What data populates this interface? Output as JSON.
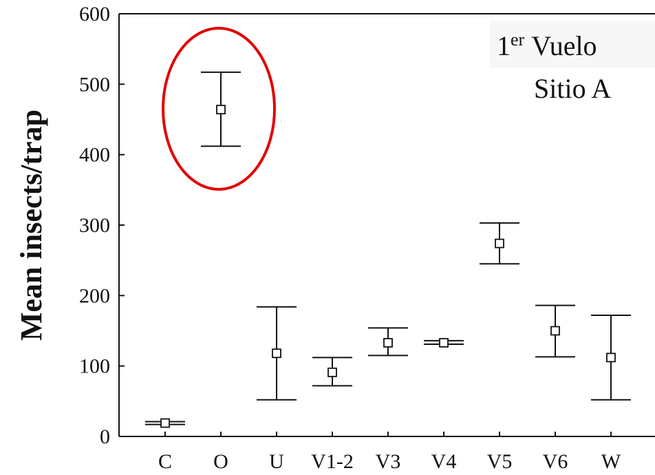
{
  "chart_data": {
    "type": "scatter",
    "title": "",
    "xlabel": "",
    "ylabel": "Mean insects/trap",
    "ylim": [
      0,
      600
    ],
    "yticks": [
      0,
      100,
      200,
      300,
      400,
      500,
      600
    ],
    "grid": false,
    "categories": [
      "C",
      "O",
      "U",
      "V1-2",
      "V3",
      "V4",
      "V5",
      "V6",
      "W"
    ],
    "series": [
      {
        "values": [
          19,
          464,
          118,
          91,
          133,
          133,
          274,
          150,
          112
        ],
        "lower": [
          17,
          412,
          52,
          72,
          115,
          131,
          245,
          113,
          52
        ],
        "upper": [
          21,
          517,
          184,
          112,
          154,
          136,
          303,
          186,
          172
        ]
      }
    ],
    "annotations": {
      "line1_main": "1",
      "line1_sup": "er",
      "line1_rest": "Vuelo",
      "line2": "Sitio A"
    },
    "highlight_category": "O",
    "colors": {
      "highlight": "#e00000",
      "ink": "#111111"
    }
  }
}
